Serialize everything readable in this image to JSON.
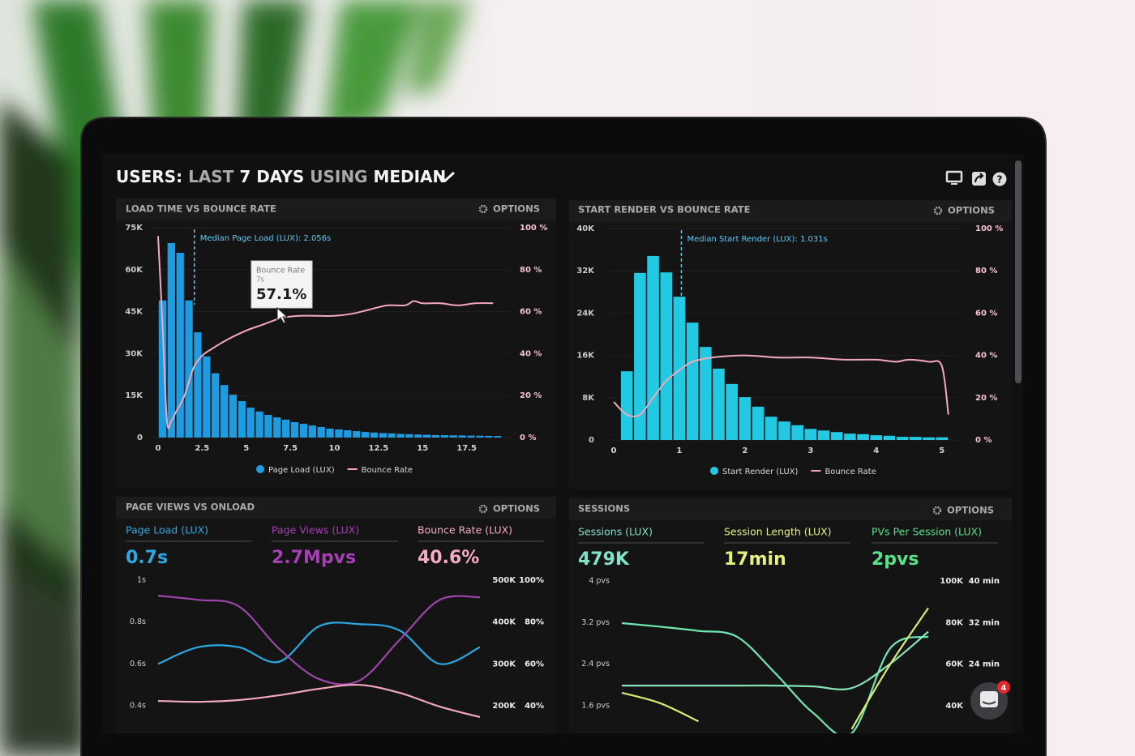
{
  "header": {
    "title": [
      "USERS:",
      "LAST",
      "7 DAYS",
      "USING",
      "MEDIAN"
    ]
  },
  "panels": [
    {
      "title": "LOAD TIME VS BOUNCE RATE",
      "options": "OPTIONS",
      "chart": {
        "type": "histogram-line",
        "median": 2.056,
        "median_label": "Median Page Load (LUX): 2.056s",
        "tooltip": {
          "title": "Bounce Rate",
          "x_label": "7s",
          "value_label": "57.1%"
        },
        "xlim": [
          0,
          20
        ],
        "xticks": [
          0,
          2.5,
          5,
          7.5,
          10,
          12.5,
          15,
          17.5
        ],
        "ylim": [
          0,
          75000
        ],
        "yticks": [
          0,
          {
            "value": 15000,
            "label": "15K"
          },
          {
            "value": 30000,
            "label": "30K"
          },
          {
            "value": 45000,
            "label": "45K"
          },
          {
            "value": 60000,
            "label": "60K"
          },
          {
            "value": 75000,
            "label": "75K"
          }
        ],
        "y2lim": [
          0,
          100
        ],
        "y2ticks": [
          {
            "value": 0,
            "label": "0 %"
          },
          {
            "value": 20,
            "label": "20 %"
          },
          {
            "value": 40,
            "label": "40 %"
          },
          {
            "value": 60,
            "label": "60 %"
          },
          {
            "value": 80,
            "label": "80 %"
          },
          {
            "value": 100,
            "label": "100 %"
          }
        ],
        "grid": true,
        "bars": {
          "name": "Page Load (LUX)",
          "color": "#1e9ce2",
          "bins": [
            0,
            0.5,
            1,
            1.5,
            2,
            2.5,
            3,
            3.5,
            4,
            4.5,
            5,
            5.5,
            6,
            6.5,
            7,
            7.5,
            8,
            8.5,
            9,
            9.5,
            10,
            10.5,
            11,
            11.5,
            12,
            12.5,
            13,
            13.5,
            14,
            14.5,
            15,
            15.5,
            16,
            16.5,
            17,
            17.5,
            18,
            18.5,
            19,
            19.5
          ],
          "values": [
            49000,
            69500,
            66000,
            49000,
            37600,
            29000,
            23000,
            18800,
            15300,
            13000,
            10700,
            9300,
            8100,
            7200,
            6400,
            5500,
            4900,
            4300,
            3800,
            3200,
            2900,
            2600,
            2300,
            2000,
            1800,
            1600,
            1500,
            1300,
            1200,
            1100,
            1000,
            900,
            850,
            800,
            750,
            700,
            650,
            600,
            550
          ]
        },
        "line": {
          "name": "Bounce Rate",
          "color": "#f3a9bb",
          "axis": "y2",
          "x": [
            0,
            0.25,
            0.5,
            0.75,
            1,
            1.5,
            2,
            2.5,
            3,
            4,
            5,
            6,
            7,
            8,
            9,
            10,
            11,
            12,
            13,
            14,
            14.5,
            15,
            16,
            17,
            18,
            19
          ],
          "values": [
            96,
            54,
            8,
            8,
            12,
            20,
            33,
            39,
            42,
            47,
            51,
            54,
            57,
            58,
            58,
            58,
            59,
            61,
            63,
            63,
            65,
            64,
            64,
            63,
            64,
            64
          ]
        }
      }
    },
    {
      "title": "START RENDER VS BOUNCE RATE",
      "options": "OPTIONS",
      "chart": {
        "type": "histogram-line",
        "median": 1.031,
        "median_label": "Median Start Render (LUX): 1.031s",
        "xlim": [
          0,
          5.3
        ],
        "xticks": [
          0,
          1,
          2,
          3,
          4,
          5
        ],
        "ylim": [
          0,
          40000
        ],
        "yticks": [
          0,
          {
            "value": 8000,
            "label": "8K"
          },
          {
            "value": 16000,
            "label": "16K"
          },
          {
            "value": 24000,
            "label": "24K"
          },
          {
            "value": 32000,
            "label": "32K"
          },
          {
            "value": 40000,
            "label": "40K"
          }
        ],
        "y2lim": [
          0,
          100
        ],
        "y2ticks": [
          {
            "value": 0,
            "label": "0 %"
          },
          {
            "value": 20,
            "label": "20 %"
          },
          {
            "value": 40,
            "label": "40 %"
          },
          {
            "value": 60,
            "label": "60 %"
          },
          {
            "value": 80,
            "label": "80 %"
          },
          {
            "value": 100,
            "label": "100 %"
          }
        ],
        "grid": true,
        "bars": {
          "name": "Start Render (LUX)",
          "color": "#22c9e2",
          "bins": [
            0.1,
            0.3,
            0.5,
            0.7,
            0.9,
            1.1,
            1.3,
            1.5,
            1.7,
            1.9,
            2.1,
            2.3,
            2.5,
            2.7,
            2.9,
            3.1,
            3.3,
            3.5,
            3.7,
            3.9,
            4.1,
            4.3,
            4.5,
            4.7,
            4.9,
            5.1
          ],
          "values": [
            13000,
            31600,
            34800,
            31700,
            27100,
            22200,
            17600,
            13500,
            10600,
            8100,
            6300,
            4400,
            3500,
            2800,
            2100,
            1800,
            1500,
            1200,
            1100,
            900,
            800,
            600,
            600,
            500,
            500
          ]
        },
        "line": {
          "name": "Bounce Rate",
          "color": "#f3a9bb",
          "axis": "y2",
          "x": [
            0,
            0.2,
            0.4,
            0.6,
            0.8,
            1,
            1.2,
            1.5,
            2,
            2.5,
            3,
            3.5,
            4,
            4.3,
            4.5,
            4.8,
            5,
            5.1
          ],
          "values": [
            18,
            12,
            12,
            20,
            28,
            33,
            37,
            39,
            40,
            39,
            39,
            38,
            38,
            37,
            38,
            37,
            35,
            12
          ]
        }
      }
    },
    {
      "title": "PAGE VIEWS VS ONLOAD",
      "options": "OPTIONS",
      "kpis": [
        {
          "label": "Page Load (LUX)",
          "value": "0.7s",
          "color": "#2aa9e3"
        },
        {
          "label": "Page Views (LUX)",
          "value": "2.7Mpvs",
          "color": "#a63fb6"
        },
        {
          "label": "Bounce Rate (LUX)",
          "value": "40.6%",
          "color": "#f7aac4"
        }
      ],
      "chart": {
        "type": "line",
        "ylim": [
          0.4,
          1
        ],
        "yticks": [
          {
            "value": 1,
            "label": "1s"
          },
          {
            "value": 0.8,
            "label": "0.8s"
          },
          {
            "value": 0.6,
            "label": "0.6s"
          },
          {
            "value": 0.4,
            "label": "0.4s"
          }
        ],
        "y2lim": [
          200000,
          500000
        ],
        "y2ticks": [
          {
            "value": 500000,
            "label": "500K"
          },
          {
            "value": 400000,
            "label": "400K"
          },
          {
            "value": 300000,
            "label": "300K"
          },
          {
            "value": 200000,
            "label": "200K"
          }
        ],
        "y3lim": [
          40,
          100
        ],
        "y3ticks": [
          {
            "value": 100,
            "label": "100%"
          },
          {
            "value": 80,
            "label": "80%"
          },
          {
            "value": 60,
            "label": "60%"
          },
          {
            "value": 40,
            "label": "40%"
          }
        ],
        "series": [
          {
            "color": "#2aa9e3",
            "axis": "y",
            "values": [
              0.6,
              0.68,
              0.68,
              0.61,
              0.78,
              0.79,
              0.76,
              0.6,
              0.68
            ]
          },
          {
            "color": "#9c46a8",
            "axis": "y2",
            "values": [
              463000,
              453000,
              438000,
              337000,
              264000,
              260000,
              357000,
              453000,
              459000
            ]
          },
          {
            "color": "#f3a9bb",
            "axis": "y3",
            "values": [
              42.3,
              41.9,
              42.7,
              45,
              48.1,
              50,
              46.2,
              39.6,
              34.6
            ]
          }
        ]
      }
    },
    {
      "title": "SESSIONS",
      "options": "OPTIONS",
      "kpis": [
        {
          "label": "Sessions (LUX)",
          "value": "479K",
          "color": "#7fe3c9"
        },
        {
          "label": "Session Length (LUX)",
          "value": "17min",
          "color": "#e6f07e"
        },
        {
          "label": "PVs Per Session (LUX)",
          "value": "2pvs",
          "color": "#58e08a"
        }
      ],
      "chart": {
        "type": "line",
        "ylim": [
          1.6,
          4
        ],
        "yticks": [
          {
            "value": 4,
            "label": "4 pvs"
          },
          {
            "value": 3.2,
            "label": "3.2 pvs"
          },
          {
            "value": 2.4,
            "label": "2.4 pvs"
          },
          {
            "value": 1.6,
            "label": "1.6 pvs"
          }
        ],
        "y2lim": [
          40000,
          100000
        ],
        "y2ticks": [
          {
            "value": 100000,
            "label": "100K"
          },
          {
            "value": 80000,
            "label": "80K"
          },
          {
            "value": 60000,
            "label": "60K"
          },
          {
            "value": 40000,
            "label": "40K"
          }
        ],
        "y3lim": [
          16,
          40
        ],
        "y3ticks": [
          {
            "value": 40,
            "label": "40 min"
          },
          {
            "value": 32,
            "label": "32 min"
          },
          {
            "value": 24,
            "label": "24 min"
          }
        ],
        "series": [
          {
            "color": "#6fe6b0",
            "axis": "y",
            "values": [
              3.19,
              3.12,
              3.04,
              2.93,
              2.23,
              1.46,
              1.07,
              2.7,
              2.93
            ]
          },
          {
            "color": "#86e3b8",
            "axis": "y2",
            "values": [
              49700,
              49700,
              49700,
              49700,
              49700,
              49300,
              48500,
              60100,
              75600
            ]
          },
          {
            "color": "#d7ec6e",
            "axis": "y3",
            "values": [
              18.5,
              16.5,
              13,
              null,
              null,
              null,
              11.5,
              23.9,
              34.8
            ]
          }
        ]
      }
    }
  ],
  "chat": {
    "badge": 4
  }
}
